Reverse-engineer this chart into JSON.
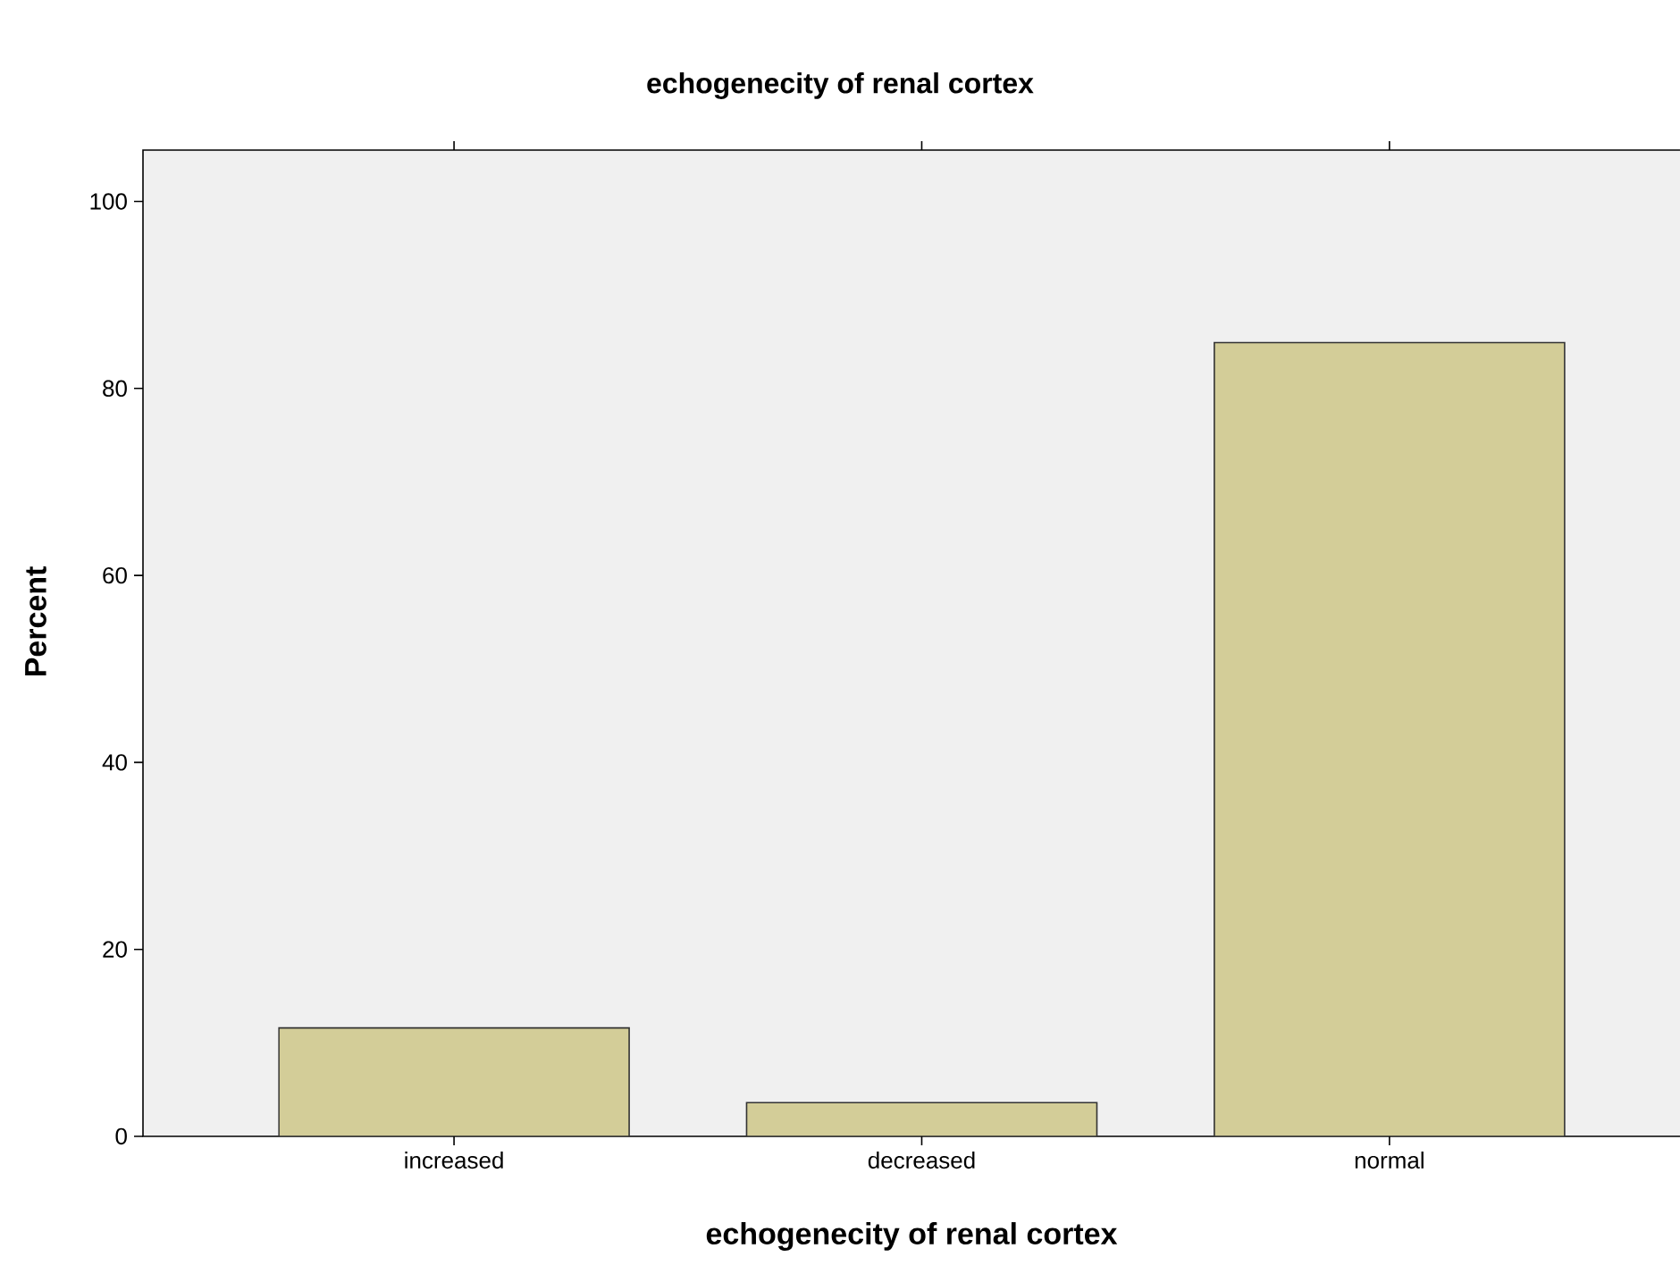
{
  "chart_data": {
    "type": "bar",
    "title": "echogenecity of renal cortex",
    "xlabel": "echogenecity of renal cortex",
    "ylabel": "Percent",
    "categories": [
      "increased",
      "decreased",
      "normal"
    ],
    "values": [
      11.6,
      3.6,
      84.9
    ],
    "color": "#d3cd98",
    "ylim": [
      0,
      105.5
    ],
    "yticks": [
      0,
      20,
      40,
      60,
      80,
      100
    ]
  }
}
